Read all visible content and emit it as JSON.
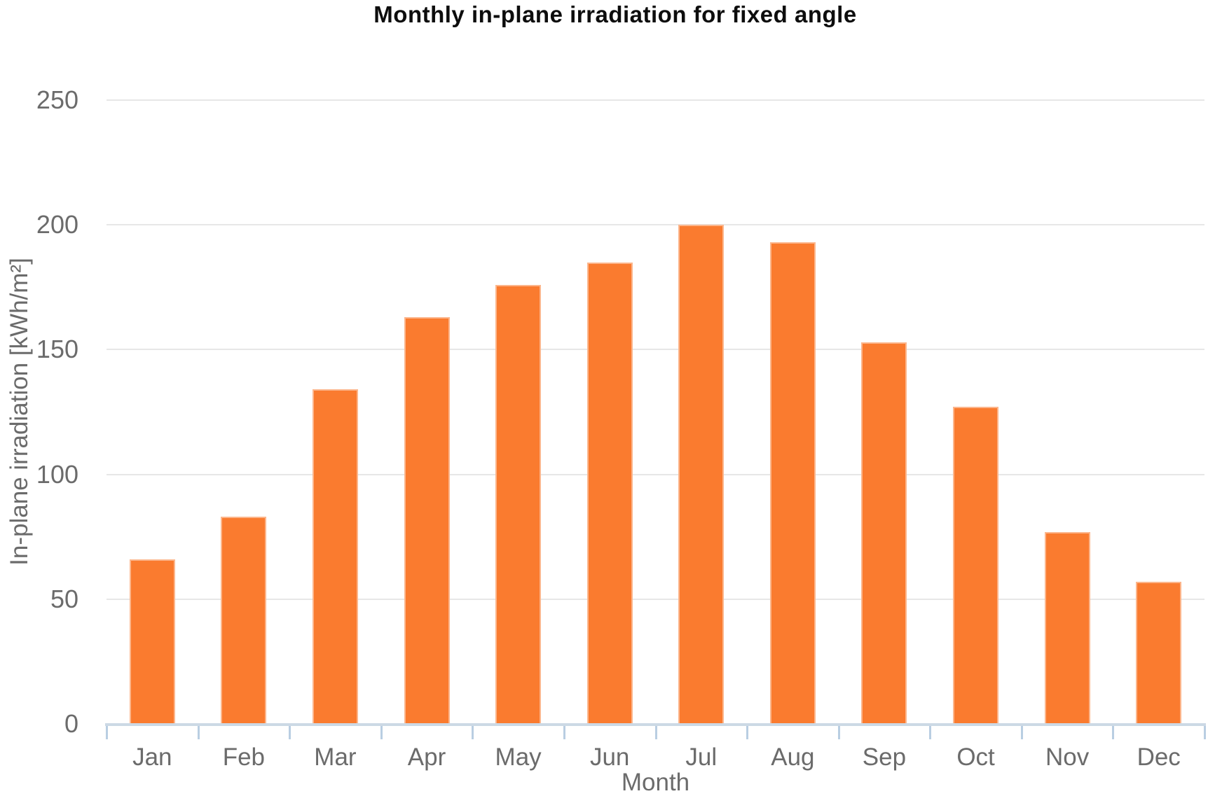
{
  "chart_data": {
    "type": "bar",
    "title": "Monthly in-plane irradiation for fixed angle",
    "xlabel": "Month",
    "ylabel": "In-plane irradiation [kWh/m²]",
    "categories": [
      "Jan",
      "Feb",
      "Mar",
      "Apr",
      "May",
      "Jun",
      "Jul",
      "Aug",
      "Sep",
      "Oct",
      "Nov",
      "Dec"
    ],
    "values": [
      66,
      83,
      134,
      163,
      176,
      185,
      200,
      193,
      153,
      127,
      77,
      57
    ],
    "ylim": [
      0,
      250
    ],
    "yticks": [
      0,
      50,
      100,
      150,
      200,
      250
    ],
    "legend": "none",
    "grid": "horizontal",
    "colors": {
      "bar_fill": "#fa7b2f",
      "gridline": "#e7e7e7",
      "axis_line": "#ccd9e5",
      "tick_mark": "#b9cee2",
      "label_text": "#6b6b6b",
      "title_text": "#0d0d0d"
    }
  }
}
